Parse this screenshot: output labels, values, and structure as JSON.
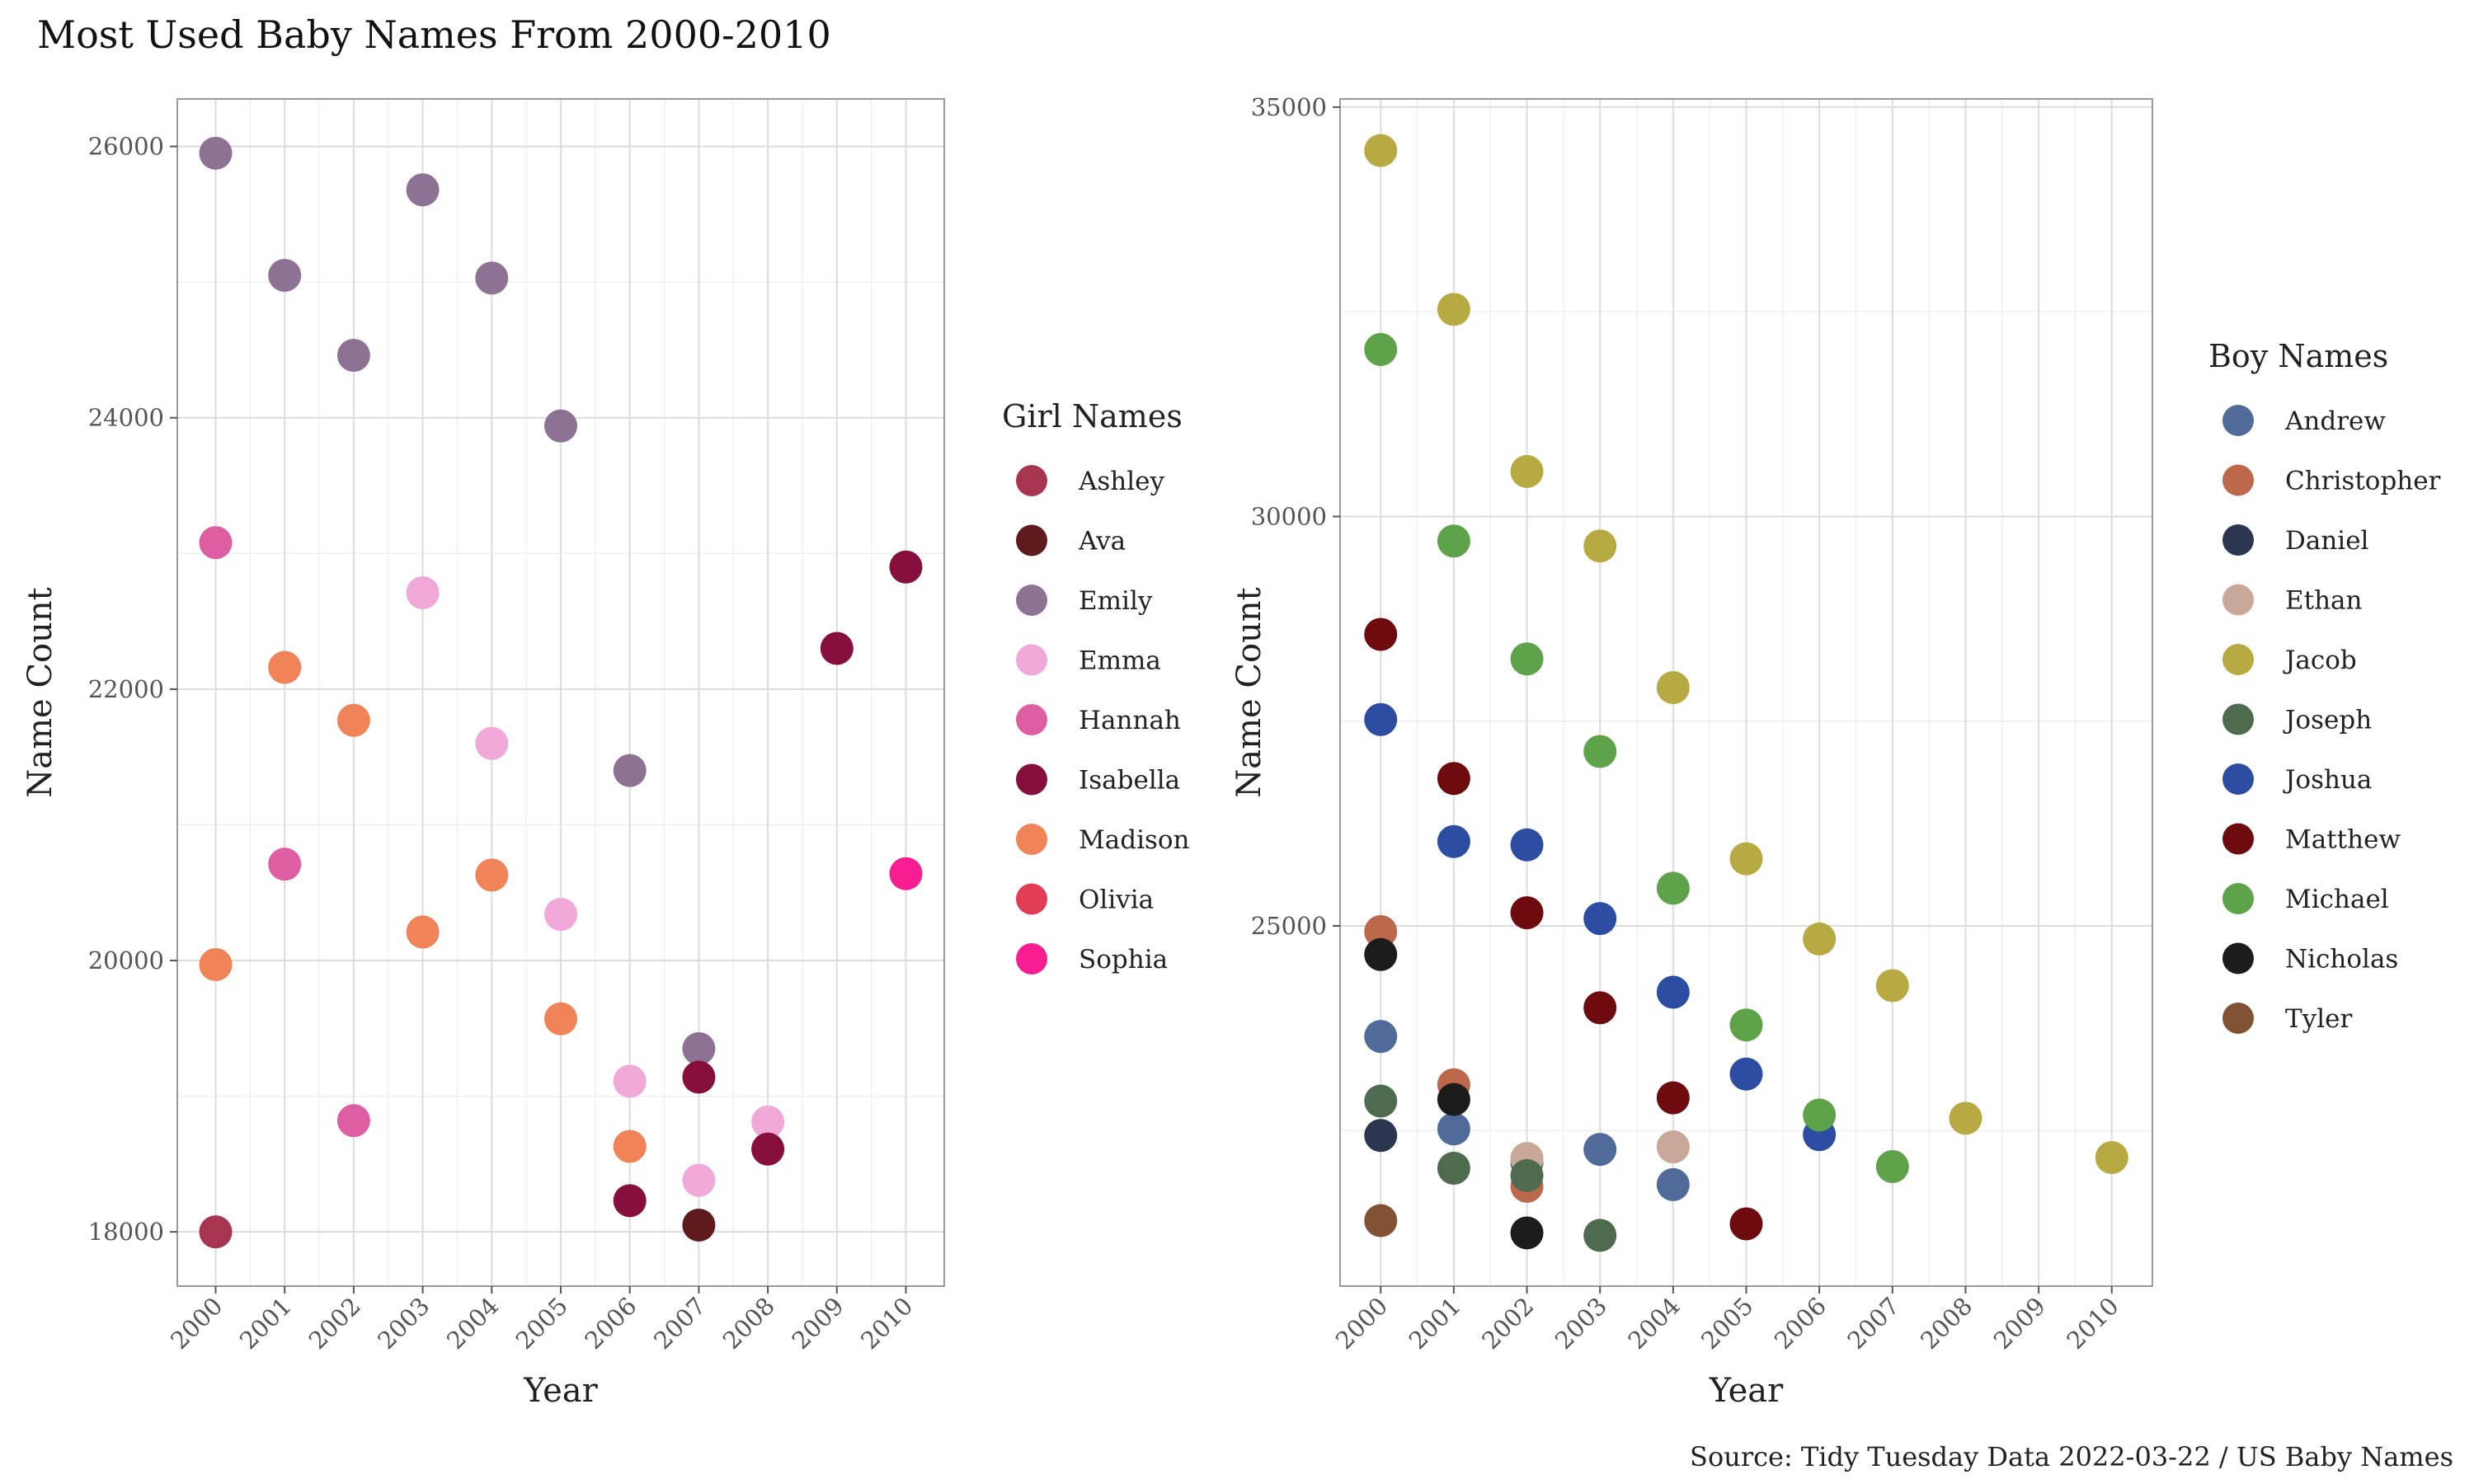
{
  "title": "Most Used Baby Names From 2000-2010",
  "caption": "Source: Tidy Tuesday Data 2022-03-22 / US Baby Names",
  "chart_data": [
    {
      "type": "scatter",
      "xlabel": "Year",
      "ylabel": "Name Count",
      "x_ticks": [
        2000,
        2001,
        2002,
        2003,
        2004,
        2005,
        2006,
        2007,
        2008,
        2009,
        2010
      ],
      "xlim": [
        2000,
        2010
      ],
      "ylim": [
        17600,
        26350
      ],
      "y_ticks": [
        18000,
        20000,
        22000,
        24000,
        26000
      ],
      "legend_title": "Girl Names",
      "legend_position": "right",
      "grid": true,
      "series": [
        {
          "name": "Ashley",
          "color": "#A8354F",
          "points": [
            [
              2000,
              18000
            ]
          ]
        },
        {
          "name": "Ava",
          "color": "#5E1A1D",
          "points": [
            [
              2007,
              18050
            ]
          ]
        },
        {
          "name": "Emily",
          "color": "#8E7294",
          "points": [
            [
              2000,
              25950
            ],
            [
              2001,
              25050
            ],
            [
              2002,
              24460
            ],
            [
              2003,
              25680
            ],
            [
              2004,
              25030
            ],
            [
              2005,
              23940
            ],
            [
              2006,
              21400
            ],
            [
              2007,
              19350
            ]
          ]
        },
        {
          "name": "Emma",
          "color": "#EFA8D8",
          "points": [
            [
              2003,
              22710
            ],
            [
              2004,
              21600
            ],
            [
              2005,
              20340
            ],
            [
              2006,
              19110
            ],
            [
              2007,
              18380
            ],
            [
              2008,
              18810
            ]
          ]
        },
        {
          "name": "Hannah",
          "color": "#DE5EA4",
          "points": [
            [
              2000,
              23080
            ],
            [
              2001,
              20710
            ],
            [
              2002,
              18820
            ]
          ]
        },
        {
          "name": "Isabella",
          "color": "#860F3E",
          "points": [
            [
              2006,
              18230
            ],
            [
              2007,
              19140
            ],
            [
              2008,
              18610
            ],
            [
              2009,
              22300
            ],
            [
              2010,
              22900
            ]
          ]
        },
        {
          "name": "Madison",
          "color": "#F08358",
          "points": [
            [
              2000,
              19970
            ],
            [
              2001,
              22160
            ],
            [
              2002,
              21770
            ],
            [
              2003,
              20210
            ],
            [
              2004,
              20630
            ],
            [
              2005,
              19570
            ],
            [
              2006,
              18630
            ]
          ]
        },
        {
          "name": "Olivia",
          "color": "#E23D56",
          "points": []
        },
        {
          "name": "Sophia",
          "color": "#F81D91",
          "points": [
            [
              2010,
              20640
            ]
          ]
        }
      ]
    },
    {
      "type": "scatter",
      "xlabel": "Year",
      "ylabel": "Name Count",
      "x_ticks": [
        2000,
        2001,
        2002,
        2003,
        2004,
        2005,
        2006,
        2007,
        2008,
        2009,
        2010
      ],
      "xlim": [
        2000,
        2010
      ],
      "ylim": [
        20600,
        35100
      ],
      "y_ticks": [
        25000,
        30000,
        35000
      ],
      "legend_title": "Boy Names",
      "legend_position": "right",
      "grid": true,
      "series": [
        {
          "name": "Andrew",
          "color": "#506A99",
          "points": [
            [
              2000,
              23650
            ],
            [
              2001,
              22520
            ],
            [
              2002,
              22110
            ],
            [
              2003,
              22270
            ],
            [
              2004,
              21840
            ]
          ]
        },
        {
          "name": "Christopher",
          "color": "#BB684B",
          "points": [
            [
              2000,
              24930
            ],
            [
              2001,
              23060
            ],
            [
              2002,
              21820
            ]
          ]
        },
        {
          "name": "Daniel",
          "color": "#2D3650",
          "points": [
            [
              2000,
              22440
            ]
          ]
        },
        {
          "name": "Ethan",
          "color": "#C8A898",
          "points": [
            [
              2002,
              22160
            ],
            [
              2004,
              22300
            ]
          ]
        },
        {
          "name": "Jacob",
          "color": "#B8AA43",
          "points": [
            [
              2000,
              34470
            ],
            [
              2001,
              32530
            ],
            [
              2002,
              30550
            ],
            [
              2003,
              29640
            ],
            [
              2004,
              27910
            ],
            [
              2005,
              25820
            ],
            [
              2006,
              24840
            ],
            [
              2007,
              24270
            ],
            [
              2008,
              22650
            ],
            [
              2010,
              22170
            ]
          ]
        },
        {
          "name": "Joseph",
          "color": "#4E6A4F",
          "points": [
            [
              2000,
              22860
            ],
            [
              2001,
              22040
            ],
            [
              2002,
              21950
            ],
            [
              2003,
              21220
            ]
          ]
        },
        {
          "name": "Joshua",
          "color": "#2C4DA2",
          "points": [
            [
              2000,
              27520
            ],
            [
              2001,
              26030
            ],
            [
              2002,
              25990
            ],
            [
              2003,
              25090
            ],
            [
              2004,
              24190
            ],
            [
              2005,
              23190
            ],
            [
              2006,
              22450
            ]
          ]
        },
        {
          "name": "Matthew",
          "color": "#6E0B0F",
          "points": [
            [
              2000,
              28560
            ],
            [
              2001,
              26800
            ],
            [
              2002,
              25160
            ],
            [
              2003,
              24000
            ],
            [
              2004,
              22900
            ],
            [
              2005,
              21360
            ]
          ]
        },
        {
          "name": "Michael",
          "color": "#5EA24A",
          "points": [
            [
              2000,
              32040
            ],
            [
              2001,
              29700
            ],
            [
              2002,
              28260
            ],
            [
              2003,
              27130
            ],
            [
              2004,
              25460
            ],
            [
              2005,
              23790
            ],
            [
              2006,
              22690
            ],
            [
              2007,
              22060
            ]
          ]
        },
        {
          "name": "Nicholas",
          "color": "#1C1C1C",
          "points": [
            [
              2000,
              24650
            ],
            [
              2001,
              22880
            ],
            [
              2002,
              21250
            ]
          ]
        },
        {
          "name": "Tyler",
          "color": "#825234",
          "points": [
            [
              2000,
              21400
            ]
          ]
        }
      ]
    }
  ]
}
